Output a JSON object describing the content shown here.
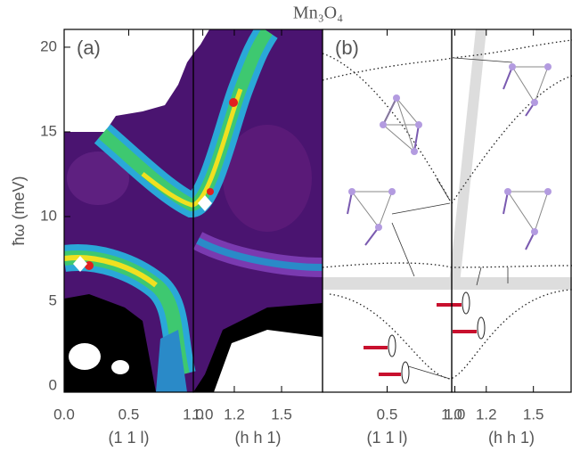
{
  "title": "Mn₃O₄",
  "chart_data": [
    {
      "type": "contour",
      "panel_label": "(a)",
      "ylabel": "ħω (meV)",
      "xlabel": "(1 1 l)",
      "xlim": [
        0,
        1
      ],
      "xticks": [
        {
          "value": 0,
          "label": "0.0"
        },
        0.5,
        {
          "value": 1,
          "label": "1.0"
        }
      ],
      "ylim": [
        -0.37,
        21.05
      ],
      "yticks": [
        0,
        5,
        10,
        15,
        20
      ]
    },
    {
      "type": "contour",
      "xlabel": "(h h 1)",
      "xlim": [
        0.94,
        1.76
      ],
      "xticks": [
        {
          "value": 1,
          "label": "1.0"
        },
        1.2,
        1.5
      ],
      "ylim": [
        -0.37,
        21.05
      ]
    },
    {
      "type": "schematic",
      "panel_label": "(b)",
      "xlabel": "(1 1 l)",
      "xlim": [
        0,
        1
      ],
      "xticks": [
        0.5,
        {
          "value": 1,
          "label": "1.0"
        }
      ],
      "ylim": [
        -0.37,
        21.05
      ]
    },
    {
      "type": "schematic",
      "xlabel": "(h h 1)",
      "xlim": [
        0.98,
        1.74
      ],
      "xticks": [
        {
          "value": 1,
          "label": "1.0"
        },
        1.2,
        1.5
      ],
      "ylim": [
        -0.37,
        21.05
      ]
    }
  ]
}
